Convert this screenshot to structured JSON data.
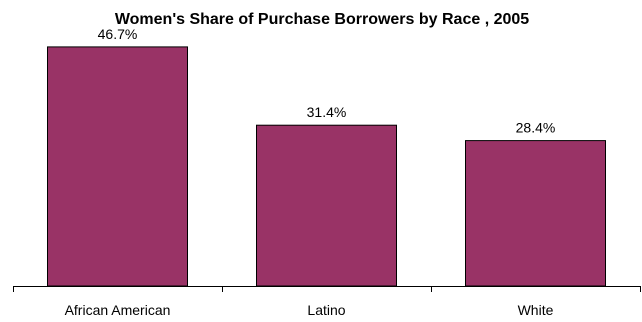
{
  "chart_data": {
    "type": "bar",
    "title": "Women's Share of Purchase Borrowers by Race , 2005",
    "categories": [
      "African American",
      "Latino",
      "White"
    ],
    "values": [
      46.7,
      31.4,
      28.4
    ],
    "value_labels": [
      "46.7%",
      "31.4%",
      "28.4%"
    ],
    "xlabel": "",
    "ylabel": "",
    "ylim": [
      0,
      50
    ],
    "grid": false,
    "legend": "none",
    "bar_color": "#993366"
  }
}
